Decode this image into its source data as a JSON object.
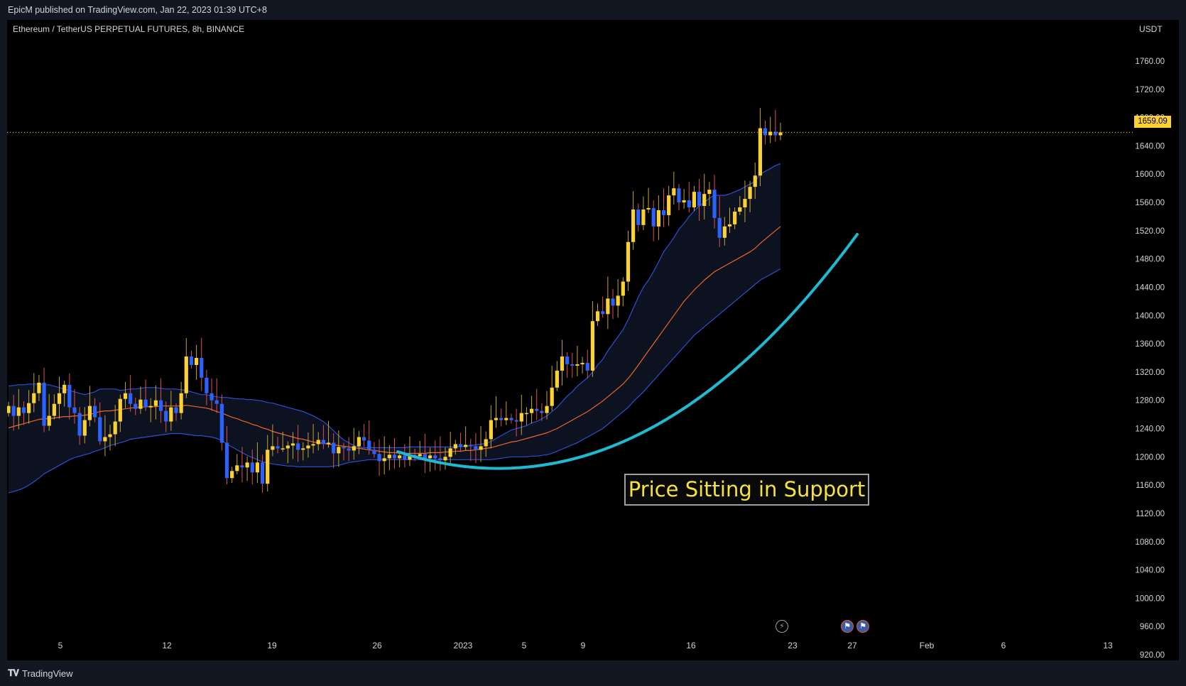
{
  "header": {
    "published": "EpicM published on TradingView.com, Jan 22, 2023 01:39 UTC+8"
  },
  "symbol": "Ethereum / TetherUS PERPETUAL FUTURES, 8h, BINANCE",
  "currency": "USDT",
  "last_price_label": "1659.09",
  "annotation": "Price Sitting in Support",
  "footer": {
    "brand": "TradingView"
  },
  "colors": {
    "up": "#fbd232",
    "down": "#2962ff",
    "band_upper": "#2f4fd6",
    "band_middle": "#f0642a",
    "band_lower": "#2f4fd6",
    "support_curve": "#1fb9d1",
    "background": "#000000",
    "last_price_line": "#fbd232"
  },
  "icons": [
    "lightning-event-icon",
    "us-flag-event-icon",
    "us-flag-event-icon"
  ],
  "chart_data": {
    "type": "candlestick",
    "title": "Ethereum / TetherUS PERPETUAL FUTURES, 8h, BINANCE",
    "ylabel": "USDT",
    "ylim": [
      880,
      1800
    ],
    "y_ticks": [
      920,
      960,
      1000,
      1040,
      1080,
      1120,
      1160,
      1200,
      1240,
      1280,
      1320,
      1360,
      1400,
      1440,
      1480,
      1520,
      1560,
      1600,
      1640,
      1680,
      1720,
      1760
    ],
    "x_ticks": [
      "5",
      "12",
      "19",
      "26",
      "2023",
      "5",
      "9",
      "16",
      "23",
      "27",
      "Feb",
      "6",
      "13"
    ],
    "last_price": 1659.09,
    "indicator": "Bollinger Bands",
    "series": [
      {
        "name": "close",
        "values": [
          1272,
          1258,
          1270,
          1262,
          1276,
          1290,
          1305,
          1244,
          1258,
          1275,
          1290,
          1302,
          1270,
          1262,
          1230,
          1252,
          1272,
          1256,
          1222,
          1228,
          1232,
          1250,
          1282,
          1290,
          1275,
          1268,
          1281,
          1270,
          1272,
          1280,
          1265,
          1250,
          1270,
          1262,
          1290,
          1342,
          1330,
          1340,
          1312,
          1290,
          1280,
          1275,
          1220,
          1170,
          1180,
          1188,
          1185,
          1192,
          1178,
          1192,
          1162,
          1210,
          1215,
          1212,
          1212,
          1216,
          1219,
          1210,
          1212,
          1216,
          1218,
          1224,
          1218,
          1220,
          1205,
          1214,
          1212,
          1209,
          1215,
          1228,
          1223,
          1210,
          1204,
          1194,
          1198,
          1203,
          1198,
          1202,
          1196,
          1203,
          1201,
          1204,
          1198,
          1202,
          1198,
          1195,
          1200,
          1212,
          1218,
          1214,
          1217,
          1215,
          1210,
          1215,
          1225,
          1252,
          1255,
          1252,
          1255,
          1252,
          1250,
          1262,
          1262,
          1268,
          1265,
          1262,
          1272,
          1298,
          1322,
          1342,
          1331,
          1329,
          1331,
          1333,
          1322,
          1392,
          1406,
          1402,
          1424,
          1414,
          1428,
          1448,
          1504,
          1550,
          1528,
          1550,
          1552,
          1526,
          1549,
          1542,
          1570,
          1580,
          1560,
          1563,
          1553,
          1575,
          1555,
          1572,
          1578,
          1538,
          1510,
          1526,
          1529,
          1547,
          1553,
          1565,
          1582,
          1598,
          1665,
          1655,
          1660,
          1655,
          1659.09
        ]
      },
      {
        "name": "bb_upper",
        "values": [
          1300,
          1301,
          1302,
          1302,
          1303,
          1303,
          1303,
          1302,
          1302,
          1300,
          1298,
          1296,
          1294,
          1292,
          1290,
          1288,
          1290,
          1292,
          1296,
          1296,
          1296,
          1296,
          1294,
          1295,
          1296,
          1296,
          1297,
          1298,
          1298,
          1298,
          1297,
          1296,
          1296,
          1296,
          1295,
          1294,
          1292,
          1290,
          1288,
          1288,
          1286,
          1285,
          1284,
          1284,
          1283,
          1282,
          1282,
          1281,
          1281,
          1280,
          1279,
          1277,
          1276,
          1274,
          1272,
          1270,
          1268,
          1266,
          1264,
          1261,
          1258,
          1254,
          1250,
          1244,
          1237,
          1230,
          1224,
          1220,
          1216,
          1214,
          1213,
          1213,
          1213,
          1213,
          1213,
          1213,
          1213,
          1213,
          1213,
          1214,
          1214,
          1214,
          1214,
          1214,
          1214,
          1214,
          1214,
          1214,
          1214,
          1215,
          1215,
          1216,
          1217,
          1218,
          1219,
          1222,
          1226,
          1230,
          1234,
          1238,
          1240,
          1242,
          1244,
          1248,
          1250,
          1254,
          1258,
          1264,
          1270,
          1278,
          1286,
          1292,
          1300,
          1306,
          1312,
          1320,
          1330,
          1338,
          1350,
          1360,
          1370,
          1380,
          1394,
          1410,
          1426,
          1440,
          1450,
          1462,
          1476,
          1490,
          1500,
          1510,
          1522,
          1530,
          1540,
          1548,
          1555,
          1560,
          1566,
          1570,
          1570,
          1570,
          1572,
          1575,
          1578,
          1582,
          1586,
          1590,
          1600,
          1604,
          1608,
          1612,
          1615
        ]
      },
      {
        "name": "bb_middle",
        "values": [
          1241,
          1243,
          1245,
          1247,
          1249,
          1251,
          1253,
          1254,
          1254,
          1255,
          1256,
          1257,
          1257,
          1258,
          1258,
          1259,
          1260,
          1262,
          1264,
          1265,
          1265,
          1266,
          1267,
          1268,
          1269,
          1270,
          1270,
          1271,
          1271,
          1271,
          1272,
          1272,
          1272,
          1272,
          1272,
          1273,
          1272,
          1271,
          1270,
          1269,
          1267,
          1264,
          1262,
          1259,
          1256,
          1254,
          1251,
          1249,
          1246,
          1244,
          1241,
          1239,
          1236,
          1234,
          1232,
          1230,
          1228,
          1226,
          1225,
          1223,
          1221,
          1220,
          1219,
          1218,
          1217,
          1216,
          1215,
          1214,
          1213,
          1212,
          1211,
          1210,
          1209,
          1208,
          1207,
          1206,
          1206,
          1205,
          1205,
          1205,
          1205,
          1205,
          1205,
          1206,
          1206,
          1206,
          1207,
          1207,
          1208,
          1208,
          1209,
          1209,
          1210,
          1211,
          1212,
          1213,
          1215,
          1217,
          1219,
          1221,
          1222,
          1224,
          1226,
          1228,
          1230,
          1232,
          1234,
          1237,
          1240,
          1244,
          1248,
          1252,
          1256,
          1260,
          1264,
          1269,
          1274,
          1279,
          1285,
          1291,
          1297,
          1303,
          1311,
          1320,
          1330,
          1340,
          1350,
          1360,
          1370,
          1380,
          1390,
          1400,
          1410,
          1420,
          1428,
          1436,
          1443,
          1450,
          1456,
          1462,
          1466,
          1470,
          1474,
          1478,
          1482,
          1486,
          1490,
          1495,
          1502,
          1508,
          1514,
          1520,
          1526
        ]
      },
      {
        "name": "bb_lower",
        "values": [
          1149,
          1151,
          1153,
          1156,
          1160,
          1165,
          1170,
          1176,
          1180,
          1184,
          1188,
          1192,
          1196,
          1199,
          1201,
          1203,
          1205,
          1208,
          1210,
          1213,
          1216,
          1218,
          1220,
          1222,
          1225,
          1226,
          1227,
          1228,
          1229,
          1230,
          1231,
          1232,
          1233,
          1233,
          1233,
          1232,
          1231,
          1230,
          1230,
          1229,
          1228,
          1226,
          1223,
          1218,
          1214,
          1210,
          1206,
          1202,
          1199,
          1196,
          1193,
          1191,
          1190,
          1189,
          1188,
          1187,
          1187,
          1186,
          1186,
          1186,
          1186,
          1186,
          1186,
          1186,
          1187,
          1188,
          1190,
          1192,
          1193,
          1194,
          1195,
          1196,
          1196,
          1196,
          1196,
          1196,
          1196,
          1196,
          1196,
          1196,
          1196,
          1196,
          1196,
          1196,
          1196,
          1196,
          1196,
          1196,
          1196,
          1196,
          1196,
          1196,
          1196,
          1196,
          1196,
          1196,
          1197,
          1198,
          1199,
          1200,
          1200,
          1200,
          1200,
          1201,
          1201,
          1202,
          1203,
          1205,
          1208,
          1211,
          1214,
          1217,
          1220,
          1224,
          1228,
          1232,
          1236,
          1240,
          1246,
          1252,
          1258,
          1264,
          1270,
          1278,
          1285,
          1292,
          1300,
          1308,
          1316,
          1324,
          1332,
          1340,
          1348,
          1356,
          1364,
          1372,
          1378,
          1384,
          1390,
          1396,
          1402,
          1408,
          1414,
          1420,
          1426,
          1432,
          1438,
          1444,
          1450,
          1454,
          1458,
          1462,
          1466
        ]
      }
    ],
    "annotations": [
      "Price Sitting in Support"
    ]
  }
}
